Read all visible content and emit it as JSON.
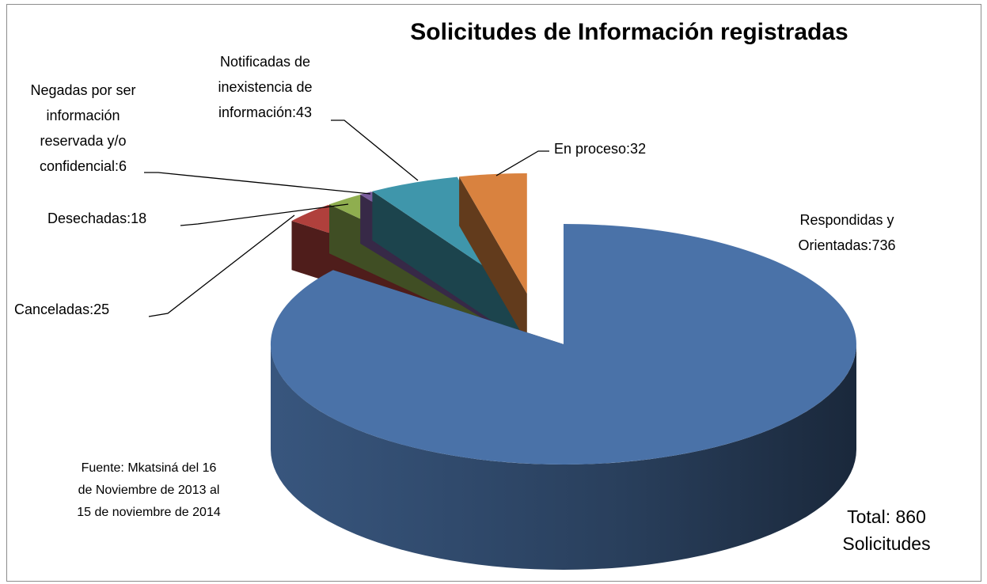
{
  "chart_data": {
    "type": "pie3d",
    "title": "Solicitudes de Información registradas",
    "values": [
      736,
      25,
      18,
      6,
      43,
      32
    ],
    "value_labels": [
      "Respondidas y\nOrientadas:736",
      "Canceladas:25",
      "Desechadas:18",
      "Negadas por ser\ninformación\nreservada y/o\nconfidencial:6",
      "Notificadas de\ninexistencia de\ninformación:43",
      "En proceso:32"
    ],
    "colors": [
      "#4a72a8",
      "#b0403c",
      "#8fae4f",
      "#7a5c9e",
      "#3f96ab",
      "#d9823f"
    ],
    "annotations": [
      "Fuente: Mkatsiná del  16\nde Noviembre de 2013 al\n15 de noviembre de 2014",
      "Total: 860\nSolicitudes"
    ]
  }
}
